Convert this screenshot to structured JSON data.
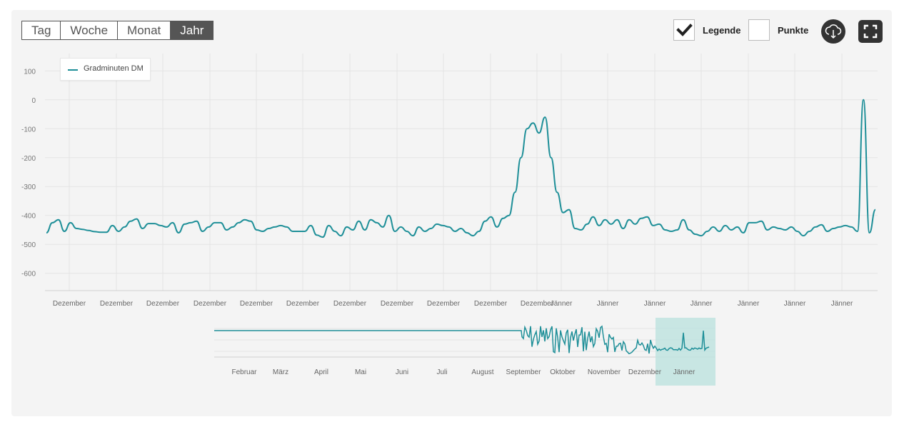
{
  "toolbar": {
    "tabs": [
      "Tag",
      "Woche",
      "Monat",
      "Jahr"
    ],
    "active_tab": "Jahr",
    "legend_label": "Legende",
    "legend_checked": true,
    "points_label": "Punkte",
    "points_checked": false,
    "download_icon": "cloud-download-icon",
    "fullscreen_icon": "fullscreen-icon"
  },
  "colors": {
    "series": "#1e8f98",
    "navigator_selection": "#bfe3df",
    "dark": "#333333"
  },
  "chart_data": {
    "type": "line",
    "series": [
      {
        "name": "Gradminuten DM"
      }
    ],
    "y_ticks": [
      "100",
      "0",
      "-100",
      "-200",
      "-300",
      "-400",
      "-500",
      "-600"
    ],
    "ylim": [
      -660,
      160
    ],
    "grid": true,
    "legend_position": "top-left",
    "x_tick_labels": [
      "Dezember",
      "Dezember",
      "Dezember",
      "Dezember",
      "Dezember",
      "Dezember",
      "Dezember",
      "Dezember",
      "Dezember",
      "Dezember",
      "Dezember",
      "Jänner",
      "Jänner",
      "Jänner",
      "Jänner",
      "Jänner",
      "Jänner",
      "Jänner"
    ],
    "values": [
      -460,
      -425,
      -415,
      -455,
      -425,
      -445,
      -448,
      -452,
      -456,
      -458,
      -458,
      -435,
      -455,
      -440,
      -420,
      -412,
      -445,
      -428,
      -428,
      -435,
      -440,
      -425,
      -460,
      -430,
      -425,
      -420,
      -455,
      -440,
      -425,
      -425,
      -450,
      -440,
      -425,
      -415,
      -420,
      -450,
      -455,
      -445,
      -440,
      -435,
      -440,
      -455,
      -455,
      -455,
      -435,
      -468,
      -475,
      -435,
      -455,
      -470,
      -440,
      -450,
      -420,
      -450,
      -415,
      -425,
      -440,
      -400,
      -455,
      -440,
      -455,
      -470,
      -440,
      -455,
      -445,
      -430,
      -435,
      -440,
      -455,
      -445,
      -460,
      -470,
      -455,
      -420,
      -405,
      -440,
      -410,
      -400,
      -320,
      -200,
      -100,
      -80,
      -115,
      -60,
      -200,
      -320,
      -390,
      -380,
      -445,
      -450,
      -430,
      -405,
      -435,
      -415,
      -430,
      -415,
      -445,
      -415,
      -430,
      -410,
      -405,
      -435,
      -430,
      -450,
      -455,
      -450,
      -415,
      -450,
      -465,
      -470,
      -455,
      -440,
      -455,
      -435,
      -450,
      -440,
      -460,
      -425,
      -425,
      -420,
      -450,
      -440,
      -445,
      -450,
      -440,
      -455,
      -470,
      -455,
      -440,
      -432,
      -455,
      -445,
      -440,
      -435,
      -440,
      -455,
      0,
      -460,
      -380
    ],
    "navigator": {
      "x_tick_labels": [
        "Februar",
        "März",
        "April",
        "Mai",
        "Juni",
        "Juli",
        "August",
        "September",
        "Oktober",
        "November",
        "Dezember",
        "Jänner"
      ]
    }
  }
}
